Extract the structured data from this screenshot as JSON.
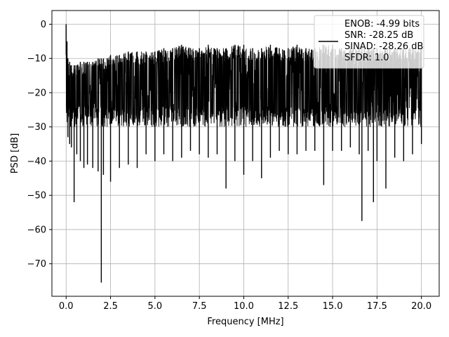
{
  "chart_data": {
    "type": "line",
    "title": "",
    "xlabel": "Frequency [MHz]",
    "ylabel": "PSD [dB]",
    "xlim": [
      -0.8,
      21.0
    ],
    "ylim": [
      -79.5,
      4.0
    ],
    "x_ticks": [
      0.0,
      2.5,
      5.0,
      7.5,
      10.0,
      12.5,
      15.0,
      17.5,
      20.0
    ],
    "x_tick_labels": [
      "0.0",
      "2.5",
      "5.0",
      "7.5",
      "10.0",
      "12.5",
      "15.0",
      "17.5",
      "20.0"
    ],
    "y_ticks": [
      0,
      -10,
      -20,
      -30,
      -40,
      -50,
      -60,
      -70
    ],
    "y_tick_labels": [
      "0",
      "−10",
      "−20",
      "−30",
      "−40",
      "−50",
      "−60",
      "−70"
    ],
    "grid": true,
    "legend_position": "top-right",
    "legend_lines": [
      "ENOB: -4.99 bits",
      "SNR: -28.25 dB",
      "SINAD: -28.26 dB",
      "SFDR: 1.0"
    ],
    "series": [
      {
        "color": "#000000",
        "x": [
          0.0,
          0.05,
          0.1,
          0.2,
          0.3,
          0.45,
          0.6,
          0.8,
          1.0,
          1.2,
          1.5,
          1.8,
          1.98,
          2.1,
          2.5,
          3.0,
          3.5,
          4.0,
          4.5,
          5.0,
          5.5,
          6.0,
          6.5,
          7.0,
          7.5,
          8.0,
          8.5,
          9.0,
          9.5,
          10.0,
          10.5,
          11.0,
          11.5,
          12.0,
          12.5,
          13.0,
          13.5,
          14.0,
          14.5,
          15.0,
          15.5,
          16.0,
          16.5,
          16.65,
          17.0,
          17.3,
          17.5,
          18.0,
          18.5,
          19.0,
          19.5,
          20.0
        ],
        "upper": [
          0,
          -5,
          -10,
          -11,
          -12,
          -12,
          -12,
          -11,
          -11,
          -11,
          -11,
          -10,
          -10,
          -10,
          -9,
          -9,
          -8,
          -8,
          -8,
          -8,
          -7,
          -7,
          -6,
          -7,
          -7,
          -6,
          -7,
          -7,
          -6,
          -6,
          -7,
          -7,
          -6,
          -7,
          -7,
          -6,
          -7,
          -7,
          -6,
          -6,
          -7,
          -7,
          -7,
          -7,
          -7,
          -7,
          -7,
          -7,
          -7,
          -7,
          -7,
          -7
        ],
        "lower": [
          -9,
          -25,
          -33,
          -35,
          -36,
          -52,
          -38,
          -40,
          -42,
          -41,
          -42,
          -43,
          -75.5,
          -44,
          -46,
          -42,
          -41,
          -42,
          -38,
          -40,
          -38,
          -40,
          -39,
          -37,
          -38,
          -39,
          -38,
          -48,
          -40,
          -44,
          -40,
          -45,
          -39,
          -37,
          -38,
          -38,
          -37,
          -37,
          -47,
          -37,
          -37,
          -36,
          -38,
          -57.5,
          -37,
          -52,
          -40,
          -48,
          -39,
          -40,
          -38,
          -35
        ]
      }
    ]
  }
}
